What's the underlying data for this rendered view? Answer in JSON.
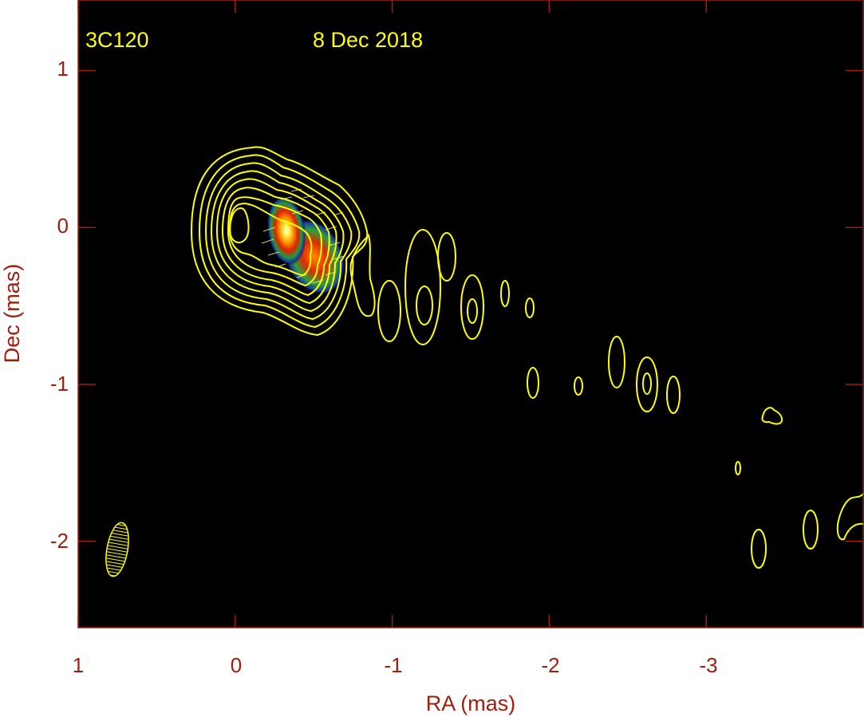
{
  "chart_data": {
    "type": "contour",
    "source_name": "3C120",
    "date": "8 Dec 2018",
    "xlabel": "RA (mas)",
    "ylabel": "Dec (mas)",
    "xlim": [
      1,
      -4
    ],
    "ylim": [
      -2.55,
      1.45
    ],
    "x_ticks": [
      1,
      0,
      -1,
      -2,
      -3
    ],
    "x_tick_labels": [
      "1",
      "0",
      "-1",
      "-2",
      "-3"
    ],
    "y_ticks": [
      1,
      0,
      -1,
      -2
    ],
    "y_tick_labels": [
      "1",
      "0",
      "-1",
      "-2"
    ],
    "core": {
      "ra": 0.0,
      "dec": 0.0
    },
    "contour_color": "#ffff00",
    "polarization": {
      "peak_ra": -0.33,
      "peak_dec": 0.0,
      "secondary_peak_ra": -0.5,
      "secondary_peak_dec": -0.2
    },
    "beam": {
      "ra": 0.75,
      "dec": -2.05,
      "major_mas": 0.34,
      "minor_mas": 0.16,
      "pa_deg": 10
    },
    "jet_knots": [
      {
        "ra": -0.95,
        "dec": -0.55
      },
      {
        "ra": -1.2,
        "dec": -0.5
      },
      {
        "ra": -1.35,
        "dec": -0.2
      },
      {
        "ra": -1.5,
        "dec": -0.55
      },
      {
        "ra": -1.7,
        "dec": -0.43
      },
      {
        "ra": -1.85,
        "dec": -0.52
      },
      {
        "ra": -1.88,
        "dec": -1.0
      },
      {
        "ra": -2.15,
        "dec": -1.02
      },
      {
        "ra": -2.4,
        "dec": -0.87
      },
      {
        "ra": -2.6,
        "dec": -1.0
      },
      {
        "ra": -2.75,
        "dec": -1.07
      },
      {
        "ra": -3.15,
        "dec": -1.54
      },
      {
        "ra": -3.38,
        "dec": -1.2
      },
      {
        "ra": -3.3,
        "dec": -2.0
      },
      {
        "ra": -3.65,
        "dec": -1.93
      },
      {
        "ra": -3.9,
        "dec": -1.85
      }
    ]
  }
}
